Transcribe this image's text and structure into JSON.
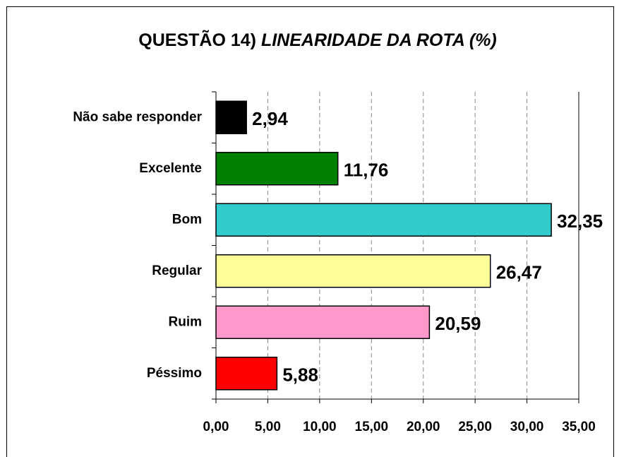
{
  "chart_data": {
    "type": "hbar",
    "title_parts": [
      "QUESTÃO 14)",
      "LINEARIDADE DA ROTA (%)"
    ],
    "categories": [
      "Não sabe responder",
      "Excelente",
      "Bom",
      "Regular",
      "Ruim",
      "Péssimo"
    ],
    "values": [
      2.94,
      11.76,
      32.35,
      26.47,
      20.59,
      5.88
    ],
    "value_labels": [
      "2,94",
      "11,76",
      "32,35",
      "26,47",
      "20,59",
      "5,88"
    ],
    "colors": [
      "#000000",
      "#008000",
      "#33cccc",
      "#ffff99",
      "#ff99cc",
      "#ff0000"
    ],
    "xlim": [
      0,
      35
    ],
    "xticks": [
      {
        "value": 0,
        "label": "0,00"
      },
      {
        "value": 5,
        "label": "5,00"
      },
      {
        "value": 10,
        "label": "10,00"
      },
      {
        "value": 15,
        "label": "15,00"
      },
      {
        "value": 20,
        "label": "20,00"
      },
      {
        "value": 25,
        "label": "25,00"
      },
      {
        "value": 30,
        "label": "30,00"
      },
      {
        "value": 35,
        "label": "35,00"
      }
    ],
    "grid": true
  }
}
